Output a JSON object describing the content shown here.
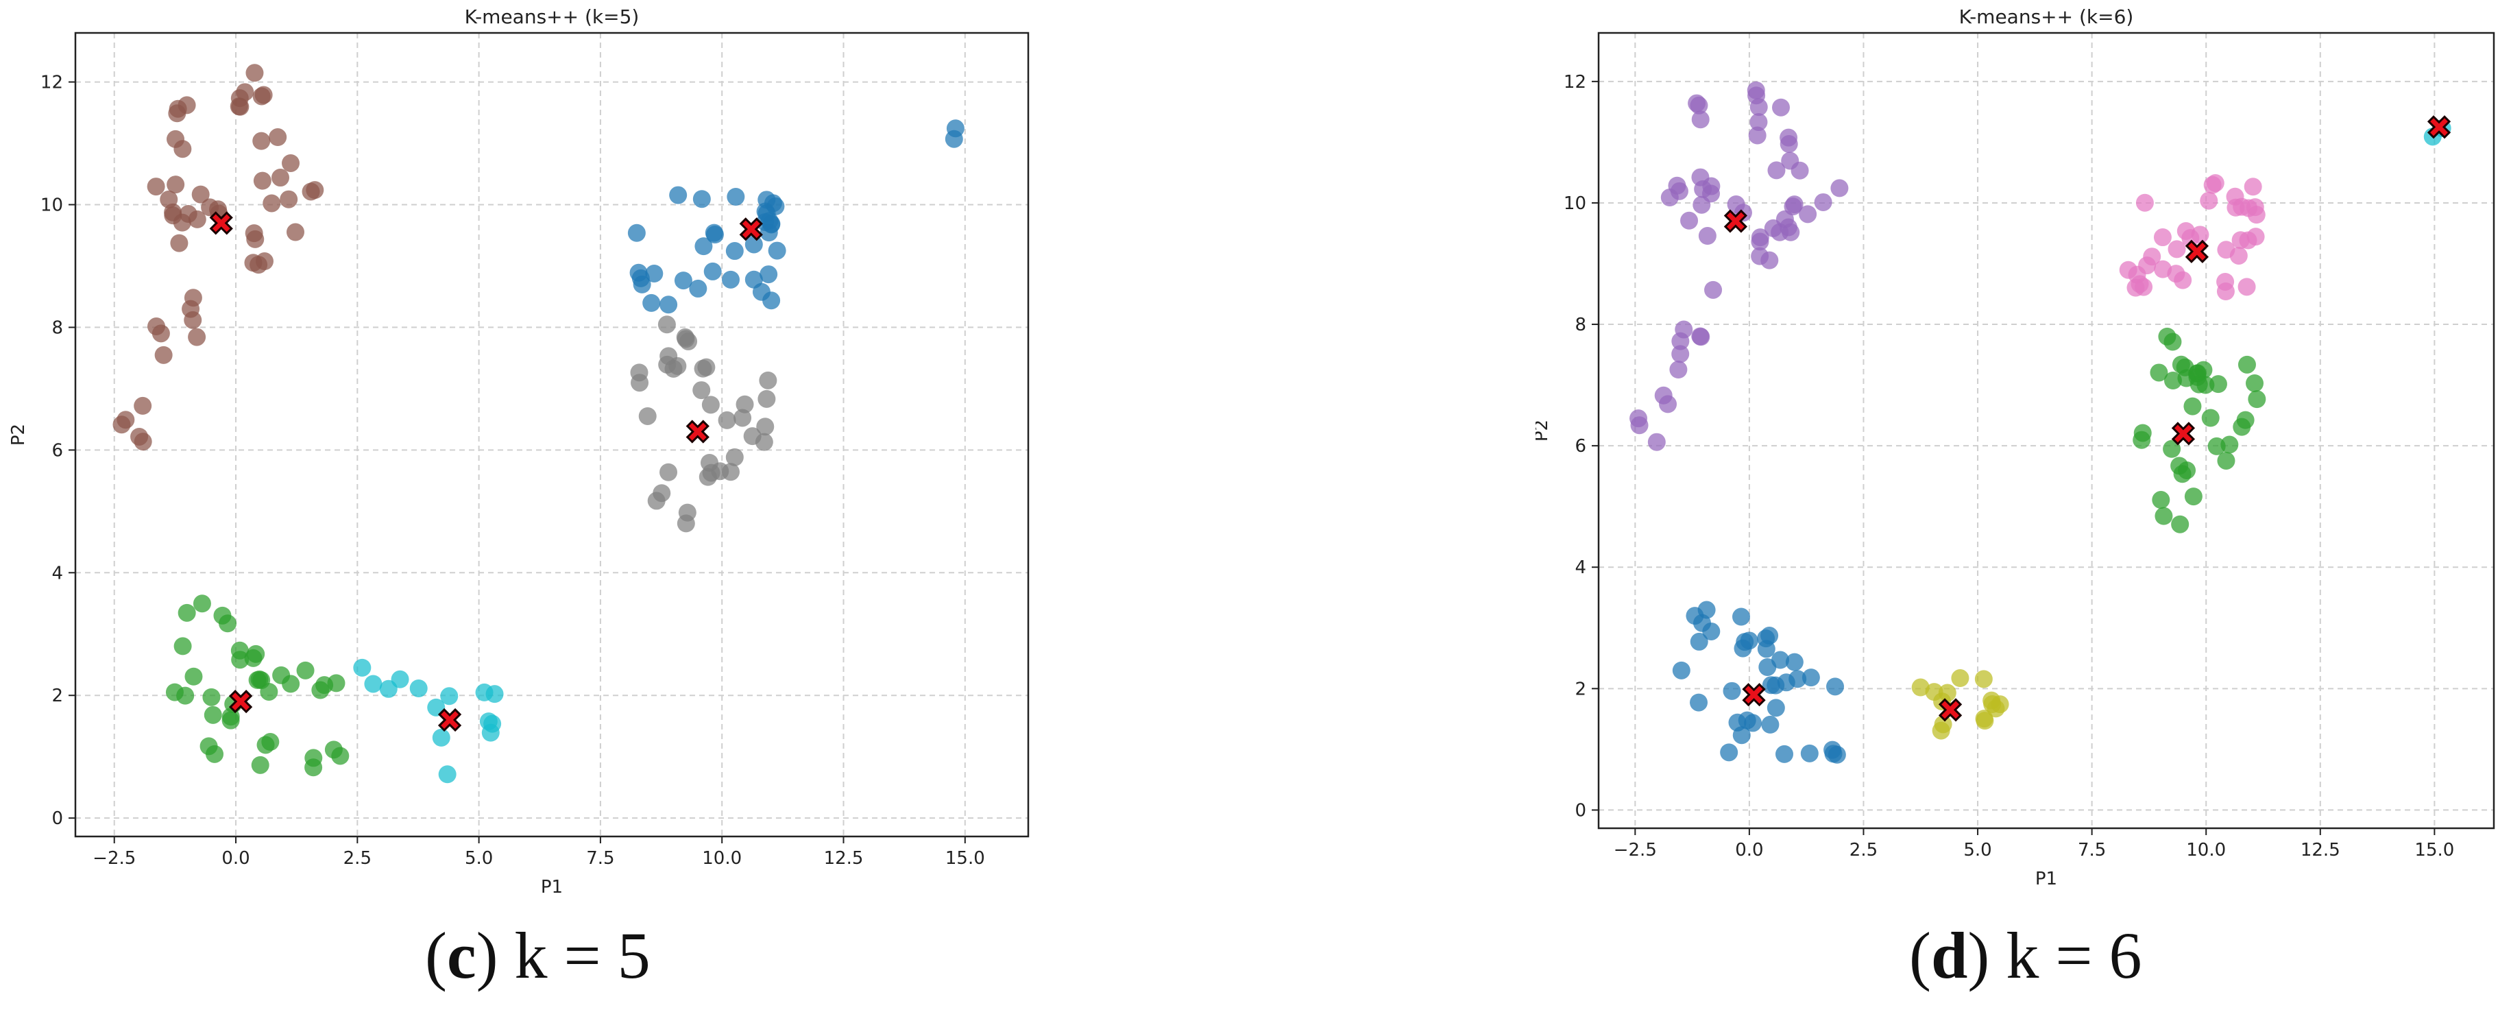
{
  "chart_data": [
    {
      "type": "scatter",
      "title": "K-means++  (k=5)",
      "xlabel": "P1",
      "ylabel": "P2",
      "xlim": [
        -3.3,
        16.3
      ],
      "ylim": [
        -0.3,
        12.8
      ],
      "xticks": [
        -2.5,
        0.0,
        2.5,
        5.0,
        7.5,
        10.0,
        12.5,
        15.0
      ],
      "xtick_labels": [
        "−2.5",
        "0.0",
        "2.5",
        "5.0",
        "7.5",
        "10.0",
        "12.5",
        "15.0"
      ],
      "yticks": [
        0,
        2,
        4,
        6,
        8,
        10,
        12
      ],
      "ytick_labels": [
        "0",
        "2",
        "4",
        "6",
        "8",
        "10",
        "12"
      ],
      "grid": true,
      "caption_letter": "c",
      "caption_text": "k = 5",
      "colors": {
        "blue": "#1f77b4",
        "brown": "#8c564b",
        "gray": "#7f7f7f",
        "green": "#2ca02c",
        "cyan": "#17becf",
        "centroid": "#e8101a"
      },
      "groups": {
        "UL": "brown",
        "UR_upper": "blue",
        "UR_lower": "gray",
        "LL": "green",
        "LR": "cyan",
        "FAR": "blue"
      },
      "centroids": [
        [
          -0.3,
          9.7
        ],
        [
          10.6,
          9.6
        ],
        [
          9.5,
          6.3
        ],
        [
          0.1,
          1.9
        ],
        [
          4.4,
          1.6
        ]
      ]
    },
    {
      "type": "scatter",
      "title": "K-means++  (k=6)",
      "xlabel": "P1",
      "ylabel": "P2",
      "xlim": [
        -3.3,
        16.3
      ],
      "ylim": [
        -0.3,
        12.8
      ],
      "xticks": [
        -2.5,
        0.0,
        2.5,
        5.0,
        7.5,
        10.0,
        12.5,
        15.0
      ],
      "xtick_labels": [
        "−2.5",
        "0.0",
        "2.5",
        "5.0",
        "7.5",
        "10.0",
        "12.5",
        "15.0"
      ],
      "yticks": [
        0,
        2,
        4,
        6,
        8,
        10,
        12
      ],
      "ytick_labels": [
        "0",
        "2",
        "4",
        "6",
        "8",
        "10",
        "12"
      ],
      "grid": true,
      "caption_letter": "d",
      "caption_text": "k = 6",
      "colors": {
        "purple": "#9467bd",
        "pink": "#e377c2",
        "green": "#2ca02c",
        "blue": "#1f77b4",
        "olive": "#bcbd22",
        "cyan": "#17becf",
        "centroid": "#e8101a"
      },
      "groups": {
        "UL": "purple",
        "UR_upper": "pink",
        "UR_lower": "green",
        "LL": "blue",
        "LR": "olive",
        "FAR": "cyan"
      },
      "centroids": [
        [
          -0.3,
          9.7
        ],
        [
          9.8,
          9.2
        ],
        [
          9.5,
          6.2
        ],
        [
          0.1,
          1.9
        ],
        [
          4.4,
          1.65
        ],
        [
          15.1,
          11.25
        ]
      ]
    }
  ]
}
